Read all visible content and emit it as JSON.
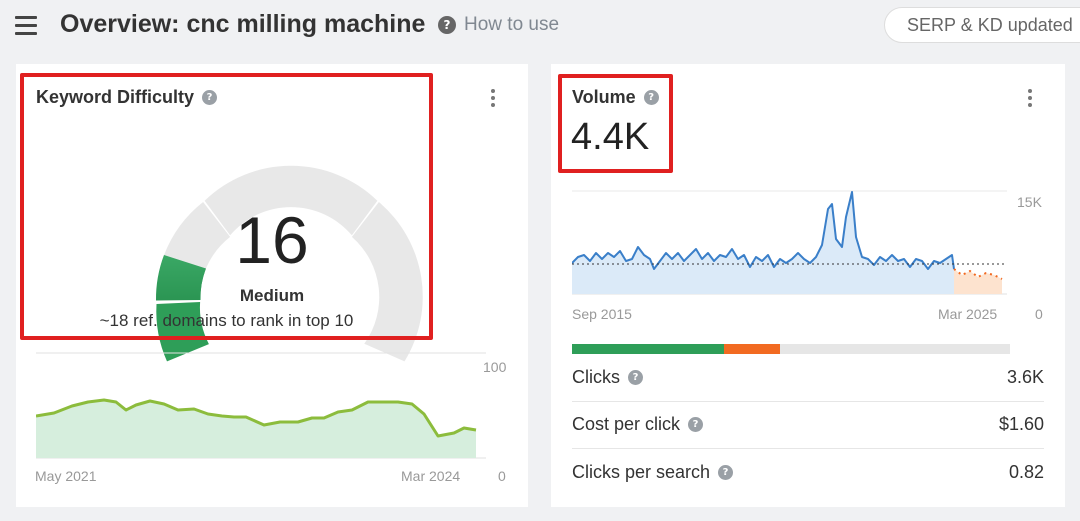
{
  "header": {
    "title": "Overview: cnc milling machine",
    "help_label": "How to use",
    "serp_label": "SERP & KD updated"
  },
  "kd_card": {
    "title": "Keyword Difficulty",
    "value": "16",
    "level": "Medium",
    "note": "~18 ref. domains to rank in top 10",
    "gauge_fraction": 0.16,
    "chart": {
      "x_start": "May 2021",
      "x_end": "Mar 2024",
      "y_max": "100",
      "y_min": "0"
    }
  },
  "volume_card": {
    "title": "Volume",
    "value": "4.4K",
    "chart": {
      "x_start": "Sep 2015",
      "x_end": "Mar 2025",
      "y_max": "15K",
      "y_min": "0"
    },
    "split_bar": {
      "green_fraction": 0.35,
      "orange_fraction": 0.13
    },
    "metrics": [
      {
        "label": "Clicks",
        "value": "3.6K"
      },
      {
        "label": "Cost per click",
        "value": "$1.60"
      },
      {
        "label": "Clicks per search",
        "value": "0.82"
      }
    ]
  },
  "colors": {
    "accent_green": "#2e9e58",
    "accent_orange": "#f26a21",
    "highlight_red": "#e02020",
    "volume_line": "#3a7fc9",
    "kd_line": "#8cbc3c"
  }
}
